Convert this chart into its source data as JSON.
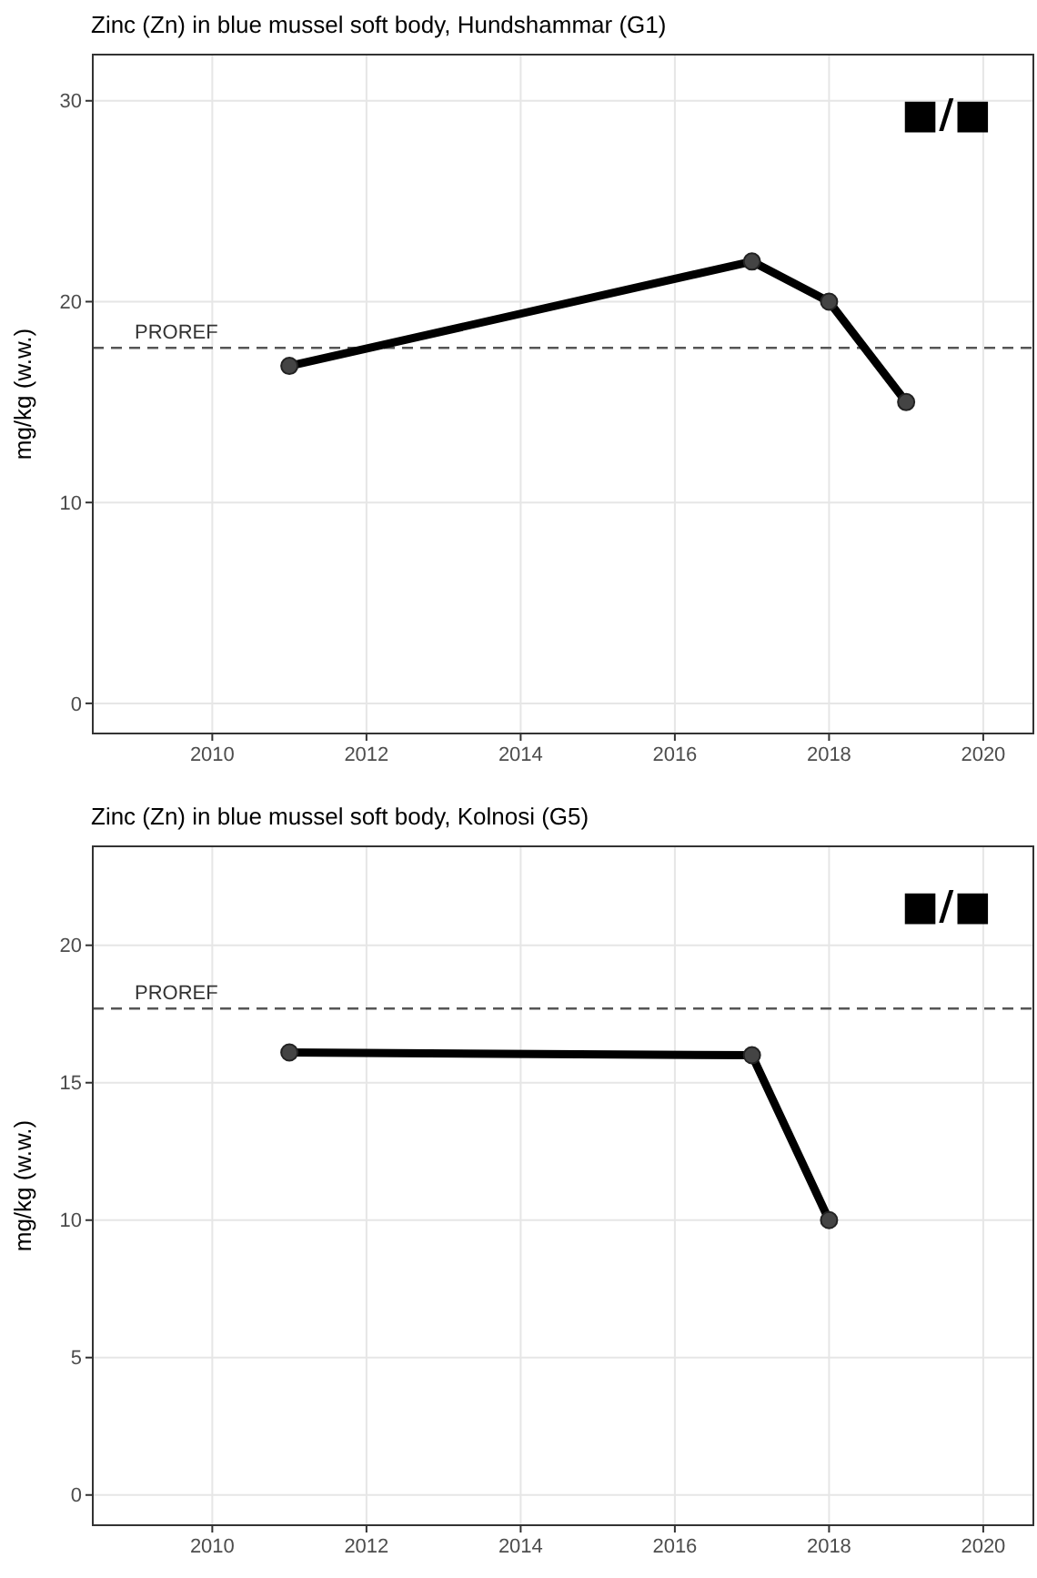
{
  "chart_data": [
    {
      "type": "line",
      "title": "Zinc (Zn) in blue mussel soft body, Hundshammar (G1)",
      "ylabel": "mg/kg (w.w.)",
      "x": [
        2011,
        2017,
        2018,
        2019
      ],
      "series": [
        {
          "color": "#000000",
          "values": [
            16.8,
            22.0,
            20.0,
            15.0
          ]
        }
      ],
      "xlim": [
        2008.45,
        2020.65
      ],
      "xticks": [
        2010,
        2012,
        2014,
        2016,
        2018,
        2020
      ],
      "ylim": [
        -1.5,
        32.3
      ],
      "yticks": [
        0,
        10,
        20,
        30
      ],
      "grid": true,
      "marker": "circle",
      "line_style": "solid",
      "ref_lines": [
        {
          "axis": "y",
          "value": 17.7,
          "label": "PROREF",
          "color": "#555555",
          "line_style": "dashed"
        }
      ],
      "annotations": [
        "■/■"
      ]
    },
    {
      "type": "line",
      "title": "Zinc (Zn) in blue mussel soft body, Kolnosi (G5)",
      "ylabel": "mg/kg (w.w.)",
      "x": [
        2011,
        2017,
        2018
      ],
      "series": [
        {
          "color": "#000000",
          "values": [
            16.1,
            16.0,
            10.0
          ]
        }
      ],
      "xlim": [
        2008.45,
        2020.65
      ],
      "xticks": [
        2010,
        2012,
        2014,
        2016,
        2018,
        2020
      ],
      "ylim": [
        -1.1,
        23.6
      ],
      "yticks": [
        0,
        5,
        10,
        15,
        20
      ],
      "grid": true,
      "marker": "circle",
      "line_style": "solid",
      "ref_lines": [
        {
          "axis": "y",
          "value": 17.7,
          "label": "PROREF",
          "color": "#555555",
          "line_style": "dashed"
        }
      ],
      "annotations": [
        "■/■"
      ]
    }
  ]
}
